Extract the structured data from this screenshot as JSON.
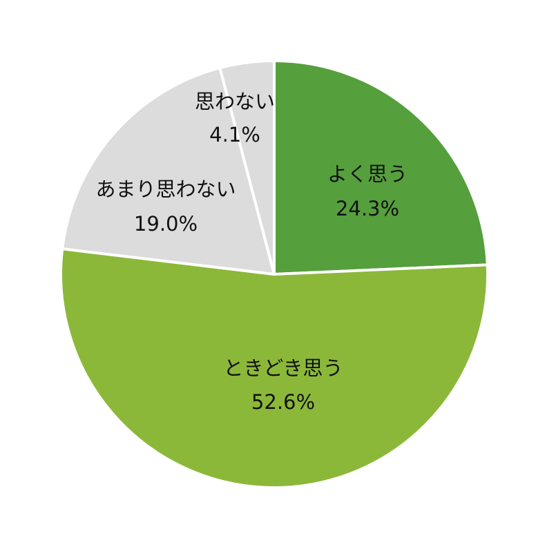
{
  "chart_data": {
    "type": "pie",
    "start": "top",
    "direction": "clockwise",
    "slices": [
      {
        "label": "よく思う",
        "value": 24.3,
        "value_label": "24.3%",
        "color": "#559f3d"
      },
      {
        "label": "ときどき思う",
        "value": 52.6,
        "value_label": "52.6%",
        "color": "#8cb83a"
      },
      {
        "label": "あまり思わない",
        "value": 19.0,
        "value_label": "19.0%",
        "color": "#dcdcdc"
      },
      {
        "label": "思わない",
        "value": 4.1,
        "value_label": "4.1%",
        "color": "#dcdcdc"
      }
    ]
  }
}
